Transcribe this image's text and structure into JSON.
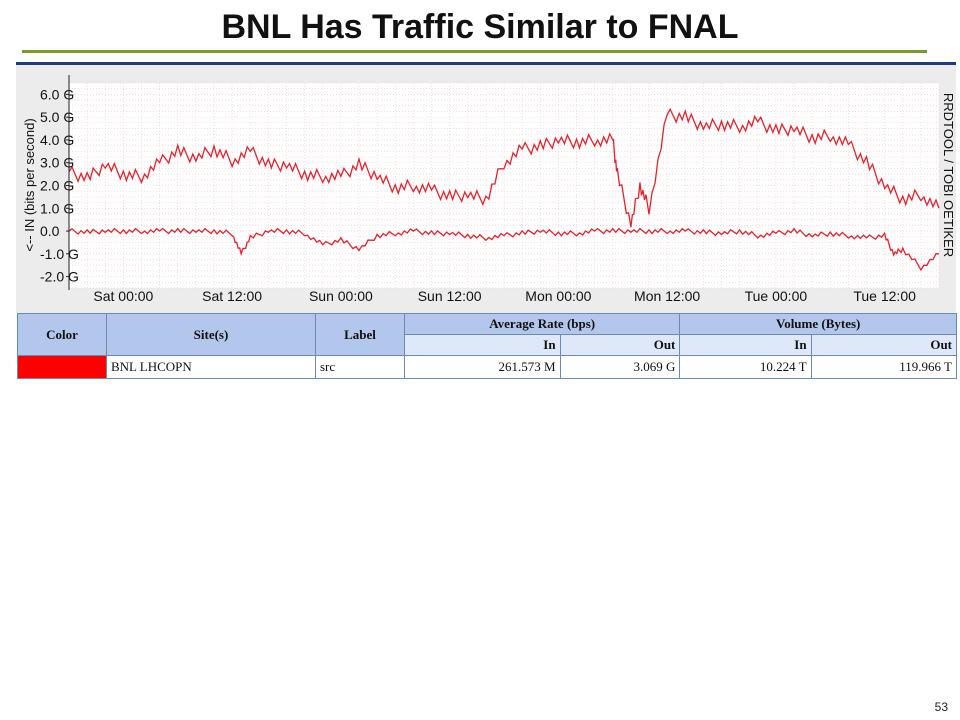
{
  "slide": {
    "title": "BNL Has Traffic Similar to FNAL",
    "page_number": "53"
  },
  "chart_data": {
    "type": "line",
    "ylabel": "<-- IN   (bits per second)",
    "side_label": "RRDTOOL / TOBI OETIKER",
    "y_ticks": [
      "6.0 G",
      "5.0 G",
      "4.0 G",
      "3.0 G",
      "2.0 G",
      "1.0 G",
      "0.0",
      "-1.0 G",
      "-2.0 G"
    ],
    "y_tick_values": [
      6,
      5,
      4,
      3,
      2,
      1,
      0,
      -1,
      -2
    ],
    "ylim": [
      -2.5,
      6.5
    ],
    "x_ticks": [
      "Sat 00:00",
      "Sat 12:00",
      "Sun 00:00",
      "Sun 12:00",
      "Mon 00:00",
      "Mon 12:00",
      "Tue 00:00",
      "Tue 12:00"
    ],
    "x_tick_hours": [
      6,
      18,
      30,
      42,
      54,
      66,
      78,
      90
    ],
    "xlim_hours": [
      0,
      96
    ],
    "grid": true,
    "series": [
      {
        "color": "#e8202a",
        "x_hours": [
          0,
          2,
          4,
          6,
          8,
          10,
          12,
          14,
          16,
          18,
          20,
          22,
          24,
          26,
          28,
          30,
          32,
          34,
          36,
          38,
          40,
          42,
          44,
          46,
          48,
          50,
          52,
          54,
          56,
          58,
          60,
          60.5,
          62,
          63,
          64,
          66,
          68,
          70,
          72,
          74,
          76,
          78,
          80,
          82,
          84,
          86,
          88,
          90,
          92,
          94,
          96
        ],
        "values": [
          2.6,
          2.3,
          2.9,
          2.5,
          2.4,
          3.0,
          3.5,
          3.2,
          3.6,
          3.1,
          3.5,
          2.9,
          2.9,
          2.5,
          2.4,
          2.4,
          2.9,
          2.4,
          1.9,
          2.0,
          1.8,
          1.5,
          1.6,
          1.4,
          3.0,
          3.6,
          3.7,
          4.0,
          3.9,
          4.0,
          4.0,
          2.5,
          0.3,
          2.0,
          1.0,
          5.1,
          5.0,
          4.6,
          4.7,
          4.6,
          4.8,
          4.4,
          4.5,
          4.1,
          4.2,
          3.8,
          3.0,
          2.0,
          1.4,
          1.6,
          1.0
        ]
      },
      {
        "color": "#e8202a",
        "x_hours": [
          0,
          2,
          4,
          6,
          8,
          10,
          12,
          14,
          16,
          18,
          19,
          20,
          22,
          24,
          26,
          28,
          30,
          32,
          34,
          36,
          38,
          40,
          42,
          44,
          46,
          48,
          50,
          52,
          54,
          56,
          58,
          60,
          62,
          64,
          66,
          68,
          70,
          72,
          74,
          76,
          78,
          80,
          82,
          84,
          86,
          88,
          90,
          91,
          92,
          94,
          96
        ],
        "values": [
          0.0,
          -0.05,
          0.0,
          0.0,
          0.0,
          0.0,
          0.0,
          0.0,
          0.0,
          -0.1,
          -1.0,
          -0.3,
          0.0,
          0.0,
          -0.1,
          -0.6,
          -0.4,
          -0.8,
          -0.2,
          -0.1,
          0.0,
          -0.1,
          -0.1,
          -0.2,
          -0.3,
          -0.2,
          -0.1,
          0.0,
          -0.1,
          -0.1,
          0.0,
          0.0,
          0.0,
          0.0,
          0.0,
          0.0,
          -0.05,
          -0.1,
          0.0,
          -0.2,
          -0.1,
          0.0,
          -0.2,
          -0.1,
          -0.2,
          -0.3,
          -0.2,
          -1.0,
          -0.8,
          -1.6,
          -1.0
        ]
      }
    ]
  },
  "table": {
    "headers": {
      "color": "Color",
      "sites": "Site(s)",
      "label": "Label",
      "avg_rate": "Average Rate (bps)",
      "volume": "Volume (Bytes)",
      "in1": "In",
      "out1": "Out",
      "in2": "In",
      "out2": "Out"
    },
    "row": {
      "swatch_color": "#ff0000",
      "site": "BNL LHCOPN",
      "label": "src",
      "avg_in": "261.573 M",
      "avg_out": "3.069 G",
      "vol_in": "10.224 T",
      "vol_out": "119.966 T"
    }
  }
}
